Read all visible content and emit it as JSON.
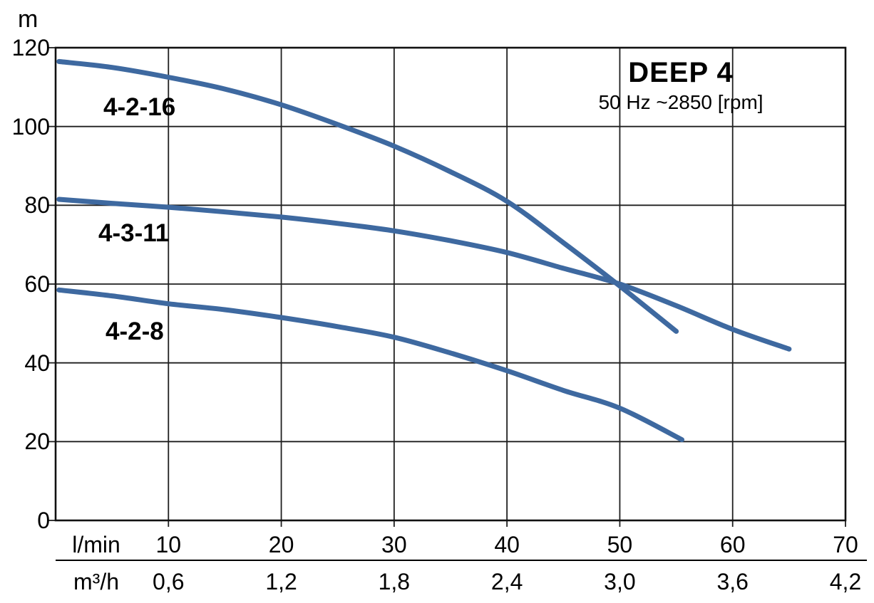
{
  "chart": {
    "y_unit": "m",
    "x_unit_primary": "l/min",
    "x_unit_secondary": "m³/h",
    "title": "DEEP 4",
    "subtitle": "50 Hz ~2850 [rpm]",
    "curve_color": "#3E69A0",
    "grid_color": "#1f1f1f",
    "background": "#ffffff"
  },
  "chart_data": {
    "type": "line",
    "title": "DEEP 4",
    "subtitle": "50 Hz ~2850 [rpm]",
    "ylabel": "m",
    "xlabel_primary": "l/min",
    "xlabel_secondary": "m³/h",
    "xlim": [
      0,
      70
    ],
    "ylim": [
      0,
      120
    ],
    "grid": true,
    "y_ticks": [
      0,
      20,
      40,
      60,
      80,
      100,
      120
    ],
    "x_ticks_lmin": [
      10,
      20,
      30,
      40,
      50,
      60,
      70
    ],
    "x_ticks_m3h": [
      "0,6",
      "1,2",
      "1,8",
      "2,4",
      "3,0",
      "3,6",
      "4,2"
    ],
    "series": [
      {
        "name": "4-2-16",
        "color": "#3E69A0",
        "points": [
          [
            0.3,
            116.5
          ],
          [
            5,
            115
          ],
          [
            10,
            112.5
          ],
          [
            15,
            109.5
          ],
          [
            20,
            105.5
          ],
          [
            25,
            100.5
          ],
          [
            30,
            95
          ],
          [
            35,
            88.5
          ],
          [
            40,
            81
          ],
          [
            45,
            70.5
          ],
          [
            50,
            59.5
          ],
          [
            55,
            48
          ]
        ]
      },
      {
        "name": "4-3-11",
        "color": "#3E69A0",
        "points": [
          [
            0.3,
            81.5
          ],
          [
            5,
            80.5
          ],
          [
            10,
            79.5
          ],
          [
            15,
            78.3
          ],
          [
            20,
            77
          ],
          [
            25,
            75.4
          ],
          [
            30,
            73.5
          ],
          [
            35,
            71
          ],
          [
            40,
            68
          ],
          [
            45,
            64
          ],
          [
            50,
            60
          ],
          [
            55,
            54.5
          ],
          [
            60,
            48.5
          ],
          [
            65,
            43.5
          ]
        ]
      },
      {
        "name": "4-2-8",
        "color": "#3E69A0",
        "points": [
          [
            0.3,
            58.5
          ],
          [
            5,
            57
          ],
          [
            10,
            55
          ],
          [
            15,
            53.5
          ],
          [
            20,
            51.5
          ],
          [
            25,
            49.2
          ],
          [
            30,
            46.5
          ],
          [
            35,
            42.5
          ],
          [
            40,
            38
          ],
          [
            45,
            33
          ],
          [
            50,
            28.5
          ],
          [
            55.5,
            20.5
          ]
        ]
      }
    ]
  }
}
